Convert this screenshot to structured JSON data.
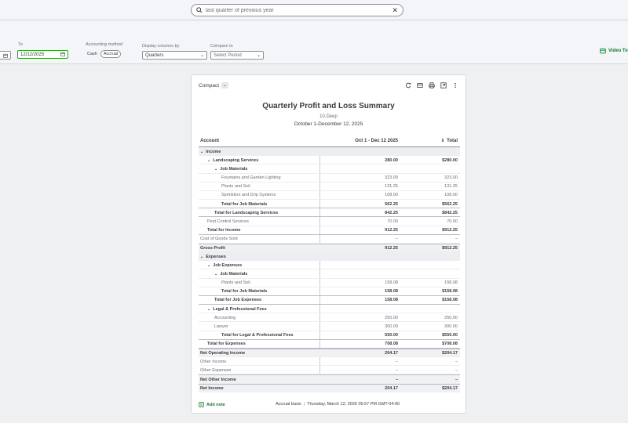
{
  "search": {
    "value": "last quarter of previous year"
  },
  "filters": {
    "to_label": "To",
    "to_value": "12/12/2025",
    "accounting_label": "Accounting method",
    "accounting_options": [
      "Cash",
      "Accrual"
    ],
    "accounting_selected": "Accrual",
    "display_label": "Display columns by",
    "display_value": "Quarters",
    "compare_label": "Compare to",
    "compare_value": "Select Period"
  },
  "video_tour": "Video To",
  "toolbar": {
    "compact": "Compact"
  },
  "report": {
    "title": "Quarterly Profit and Loss Summary",
    "company": "10.Deep",
    "date_range": "October 1-December 12, 2025",
    "columns": [
      "Account",
      "Oct 1 - Dec 12 2025",
      "Total"
    ],
    "rows": [
      {
        "label": "Income",
        "indent": 0,
        "caret": true,
        "type": "section",
        "v1": "",
        "v2": ""
      },
      {
        "label": "Landscaping Services",
        "indent": 1,
        "caret": true,
        "type": "bold",
        "v1": "280.00",
        "v2": "$280.00"
      },
      {
        "label": "Job Materials",
        "indent": 2,
        "caret": true,
        "type": "bold",
        "v1": "",
        "v2": ""
      },
      {
        "label": "Fountains and Garden Lighting",
        "indent": 3,
        "caret": false,
        "type": "sub",
        "v1": "323.00",
        "v2": "323.00"
      },
      {
        "label": "Plants and Soil",
        "indent": 3,
        "caret": false,
        "type": "sub",
        "v1": "131.25",
        "v2": "131.25"
      },
      {
        "label": "Sprinklers and Drip Systems",
        "indent": 3,
        "caret": false,
        "type": "sub",
        "v1": "108.00",
        "v2": "108.00"
      },
      {
        "label": "Total for Job Materials",
        "indent": 3,
        "caret": false,
        "type": "total",
        "v1": "562.25",
        "v2": "$562.25"
      },
      {
        "label": "Total for Landscaping Services",
        "indent": 2,
        "caret": false,
        "type": "total",
        "v1": "842.25",
        "v2": "$842.25"
      },
      {
        "label": "Pest Control Services",
        "indent": 1,
        "caret": false,
        "type": "sub",
        "v1": "70.00",
        "v2": "70.00"
      },
      {
        "label": "Total for Income",
        "indent": 1,
        "caret": false,
        "type": "total",
        "v1": "912.25",
        "v2": "$912.25"
      },
      {
        "label": "Cost of Goods Sold",
        "indent": 0,
        "caret": false,
        "type": "sub",
        "v1": "–",
        "v2": "–"
      },
      {
        "label": "Gross Profit",
        "indent": 0,
        "caret": false,
        "type": "major",
        "v1": "912.25",
        "v2": "$912.25"
      },
      {
        "label": "Expenses",
        "indent": 0,
        "caret": true,
        "type": "section",
        "v1": "",
        "v2": ""
      },
      {
        "label": "Job Expenses",
        "indent": 1,
        "caret": true,
        "type": "bold",
        "v1": "",
        "v2": ""
      },
      {
        "label": "Job Materials",
        "indent": 2,
        "caret": true,
        "type": "bold",
        "v1": "",
        "v2": ""
      },
      {
        "label": "Plants and Soil",
        "indent": 3,
        "caret": false,
        "type": "sub",
        "v1": "158.08",
        "v2": "158.08"
      },
      {
        "label": "Total for Job Materials",
        "indent": 3,
        "caret": false,
        "type": "total",
        "v1": "158.08",
        "v2": "$158.08"
      },
      {
        "label": "Total for Job Expenses",
        "indent": 2,
        "caret": false,
        "type": "total",
        "v1": "158.08",
        "v2": "$158.08"
      },
      {
        "label": "Legal & Professional Fees",
        "indent": 1,
        "caret": true,
        "type": "bold",
        "v1": "",
        "v2": ""
      },
      {
        "label": "Accounting",
        "indent": 2,
        "caret": false,
        "type": "sub",
        "v1": "250.00",
        "v2": "250.00"
      },
      {
        "label": "Lawyer",
        "indent": 2,
        "caret": false,
        "type": "sub",
        "v1": "300.00",
        "v2": "300.00"
      },
      {
        "label": "Total for Legal & Professional Fees",
        "indent": 3,
        "caret": false,
        "type": "total",
        "v1": "550.00",
        "v2": "$550.00"
      },
      {
        "label": "Total for Expenses",
        "indent": 1,
        "caret": false,
        "type": "total",
        "v1": "708.08",
        "v2": "$708.08"
      },
      {
        "label": "Net Operating Income",
        "indent": 0,
        "caret": false,
        "type": "major",
        "v1": "204.17",
        "v2": "$204.17"
      },
      {
        "label": "Other Income",
        "indent": 0,
        "caret": false,
        "type": "sub",
        "v1": "–",
        "v2": "–"
      },
      {
        "label": "Other Expenses",
        "indent": 0,
        "caret": false,
        "type": "sub",
        "v1": "–",
        "v2": "–"
      },
      {
        "label": "Net Other Income",
        "indent": 0,
        "caret": false,
        "type": "major",
        "v1": "–",
        "v2": "–"
      },
      {
        "label": "Net Income",
        "indent": 0,
        "caret": false,
        "type": "major",
        "v1": "204.17",
        "v2": "$204.17"
      }
    ]
  },
  "footer": {
    "add_note": "Add note",
    "basis": "Accrual basis",
    "timestamp": "Thursday, March 12, 2026 05:57 PM GMT-04:00"
  },
  "colors": {
    "accent_green": "#2ca01c",
    "link_green": "#0d7d2a"
  }
}
